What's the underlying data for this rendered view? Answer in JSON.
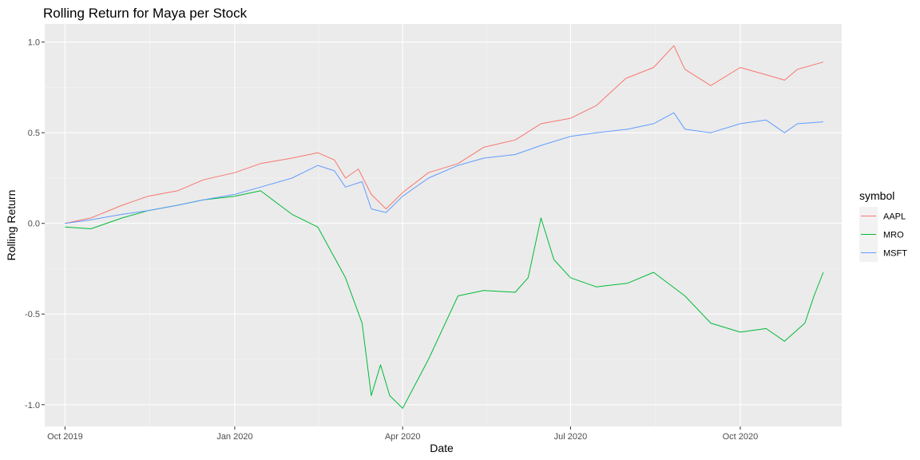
{
  "chart_data": {
    "type": "line",
    "title": "Rolling Return for Maya per Stock",
    "xlabel": "Date",
    "ylabel": "Rolling Return",
    "x_range": [
      "2019-09-20",
      "2020-11-25"
    ],
    "ylim": [
      -1.12,
      1.1
    ],
    "grid": true,
    "legend_position": "right",
    "legend_title": "symbol",
    "x_ticks": [
      {
        "date": "2019-10-01",
        "label": "Oct 2019"
      },
      {
        "date": "2020-01-01",
        "label": "Jan 2020"
      },
      {
        "date": "2020-04-01",
        "label": "Apr 2020"
      },
      {
        "date": "2020-07-01",
        "label": "Jul 2020"
      },
      {
        "date": "2020-10-01",
        "label": "Oct 2020"
      }
    ],
    "y_ticks": [
      {
        "value": -1.0,
        "label": "-1.0"
      },
      {
        "value": -0.5,
        "label": "-0.5"
      },
      {
        "value": 0.0,
        "label": "0.0"
      },
      {
        "value": 0.5,
        "label": "0.5"
      },
      {
        "value": 1.0,
        "label": "1.0"
      }
    ],
    "series": [
      {
        "name": "AAPL",
        "color": "#F8766D",
        "points": [
          [
            "2019-10-01",
            0.0
          ],
          [
            "2019-10-15",
            0.03
          ],
          [
            "2019-11-01",
            0.1
          ],
          [
            "2019-11-15",
            0.15
          ],
          [
            "2019-12-01",
            0.18
          ],
          [
            "2019-12-15",
            0.24
          ],
          [
            "2020-01-01",
            0.28
          ],
          [
            "2020-01-15",
            0.33
          ],
          [
            "2020-02-01",
            0.36
          ],
          [
            "2020-02-15",
            0.39
          ],
          [
            "2020-02-24",
            0.35
          ],
          [
            "2020-03-01",
            0.25
          ],
          [
            "2020-03-08",
            0.3
          ],
          [
            "2020-03-15",
            0.16
          ],
          [
            "2020-03-23",
            0.08
          ],
          [
            "2020-04-01",
            0.17
          ],
          [
            "2020-04-15",
            0.28
          ],
          [
            "2020-05-01",
            0.33
          ],
          [
            "2020-05-15",
            0.42
          ],
          [
            "2020-06-01",
            0.46
          ],
          [
            "2020-06-15",
            0.55
          ],
          [
            "2020-07-01",
            0.58
          ],
          [
            "2020-07-15",
            0.65
          ],
          [
            "2020-07-31",
            0.8
          ],
          [
            "2020-08-15",
            0.86
          ],
          [
            "2020-08-26",
            0.98
          ],
          [
            "2020-09-01",
            0.85
          ],
          [
            "2020-09-15",
            0.76
          ],
          [
            "2020-10-01",
            0.86
          ],
          [
            "2020-10-15",
            0.82
          ],
          [
            "2020-10-25",
            0.79
          ],
          [
            "2020-11-01",
            0.85
          ],
          [
            "2020-11-15",
            0.89
          ]
        ]
      },
      {
        "name": "MRO",
        "color": "#00BA38",
        "points": [
          [
            "2019-10-01",
            -0.02
          ],
          [
            "2019-10-15",
            -0.03
          ],
          [
            "2019-11-01",
            0.03
          ],
          [
            "2019-11-15",
            0.07
          ],
          [
            "2019-12-01",
            0.1
          ],
          [
            "2019-12-15",
            0.13
          ],
          [
            "2020-01-01",
            0.15
          ],
          [
            "2020-01-15",
            0.18
          ],
          [
            "2020-02-01",
            0.05
          ],
          [
            "2020-02-15",
            -0.02
          ],
          [
            "2020-03-01",
            -0.3
          ],
          [
            "2020-03-10",
            -0.55
          ],
          [
            "2020-03-15",
            -0.95
          ],
          [
            "2020-03-20",
            -0.78
          ],
          [
            "2020-03-25",
            -0.95
          ],
          [
            "2020-04-01",
            -1.02
          ],
          [
            "2020-04-15",
            -0.75
          ],
          [
            "2020-05-01",
            -0.4
          ],
          [
            "2020-05-15",
            -0.37
          ],
          [
            "2020-06-01",
            -0.38
          ],
          [
            "2020-06-08",
            -0.3
          ],
          [
            "2020-06-15",
            0.03
          ],
          [
            "2020-06-22",
            -0.2
          ],
          [
            "2020-07-01",
            -0.3
          ],
          [
            "2020-07-15",
            -0.35
          ],
          [
            "2020-08-01",
            -0.33
          ],
          [
            "2020-08-15",
            -0.27
          ],
          [
            "2020-09-01",
            -0.4
          ],
          [
            "2020-09-15",
            -0.55
          ],
          [
            "2020-10-01",
            -0.6
          ],
          [
            "2020-10-15",
            -0.58
          ],
          [
            "2020-10-25",
            -0.65
          ],
          [
            "2020-11-05",
            -0.55
          ],
          [
            "2020-11-10",
            -0.4
          ],
          [
            "2020-11-15",
            -0.27
          ]
        ]
      },
      {
        "name": "MSFT",
        "color": "#619CFF",
        "points": [
          [
            "2019-10-01",
            0.0
          ],
          [
            "2019-10-15",
            0.02
          ],
          [
            "2019-11-01",
            0.05
          ],
          [
            "2019-11-15",
            0.07
          ],
          [
            "2019-12-01",
            0.1
          ],
          [
            "2019-12-15",
            0.13
          ],
          [
            "2020-01-01",
            0.16
          ],
          [
            "2020-01-15",
            0.2
          ],
          [
            "2020-02-01",
            0.25
          ],
          [
            "2020-02-15",
            0.32
          ],
          [
            "2020-02-24",
            0.29
          ],
          [
            "2020-03-01",
            0.2
          ],
          [
            "2020-03-10",
            0.23
          ],
          [
            "2020-03-15",
            0.08
          ],
          [
            "2020-03-23",
            0.06
          ],
          [
            "2020-04-01",
            0.15
          ],
          [
            "2020-04-15",
            0.25
          ],
          [
            "2020-05-01",
            0.32
          ],
          [
            "2020-05-15",
            0.36
          ],
          [
            "2020-06-01",
            0.38
          ],
          [
            "2020-06-15",
            0.43
          ],
          [
            "2020-07-01",
            0.48
          ],
          [
            "2020-07-15",
            0.5
          ],
          [
            "2020-08-01",
            0.52
          ],
          [
            "2020-08-15",
            0.55
          ],
          [
            "2020-08-26",
            0.61
          ],
          [
            "2020-09-01",
            0.52
          ],
          [
            "2020-09-15",
            0.5
          ],
          [
            "2020-10-01",
            0.55
          ],
          [
            "2020-10-15",
            0.57
          ],
          [
            "2020-10-25",
            0.5
          ],
          [
            "2020-11-01",
            0.55
          ],
          [
            "2020-11-15",
            0.56
          ]
        ]
      }
    ]
  }
}
